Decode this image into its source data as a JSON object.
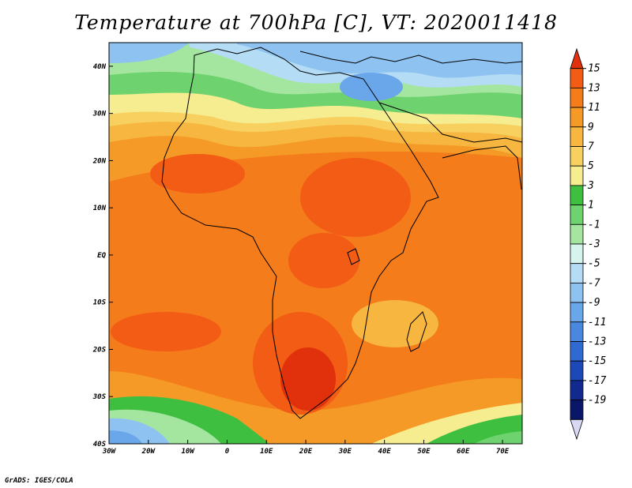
{
  "title": "Temperature at 700hPa [C], VT: 2020011418",
  "credit": "GrADS: IGES/COLA",
  "map": {
    "projection": "latlon",
    "lon_range": [
      -30,
      75
    ],
    "lat_range": [
      -40,
      45
    ],
    "lon_ticks": [
      {
        "v": -30,
        "label": "30W"
      },
      {
        "v": -20,
        "label": "20W"
      },
      {
        "v": -10,
        "label": "10W"
      },
      {
        "v": 0,
        "label": "0"
      },
      {
        "v": 10,
        "label": "10E"
      },
      {
        "v": 20,
        "label": "20E"
      },
      {
        "v": 30,
        "label": "30E"
      },
      {
        "v": 40,
        "label": "40E"
      },
      {
        "v": 50,
        "label": "50E"
      },
      {
        "v": 60,
        "label": "60E"
      },
      {
        "v": 70,
        "label": "70E"
      }
    ],
    "lat_ticks": [
      {
        "v": 40,
        "label": "40N"
      },
      {
        "v": 30,
        "label": "30N"
      },
      {
        "v": 20,
        "label": "20N"
      },
      {
        "v": 10,
        "label": "10N"
      },
      {
        "v": 0,
        "label": "EQ"
      },
      {
        "v": -10,
        "label": "10S"
      },
      {
        "v": -20,
        "label": "20S"
      },
      {
        "v": -30,
        "label": "30S"
      },
      {
        "v": -40,
        "label": "40S"
      }
    ]
  },
  "colorbar": {
    "labels": [
      "15",
      "13",
      "11",
      "9",
      "7",
      "5",
      "3",
      "1",
      "-1",
      "-3",
      "-5",
      "-7",
      "-9",
      "-11",
      "-13",
      "-15",
      "-17",
      "-19"
    ],
    "colors": [
      "#e0300c",
      "#f25c14",
      "#f47c1a",
      "#f59a26",
      "#f6b640",
      "#f7d060",
      "#f6ec90",
      "#3fbf3f",
      "#6ed36e",
      "#a4e6a0",
      "#d6f4ee",
      "#b4dcf4",
      "#8ec2f0",
      "#6aa6ea",
      "#4a88e0",
      "#2f6ad2",
      "#1c48b8",
      "#122a90",
      "#0a1668",
      "#d8d8f4"
    ]
  }
}
